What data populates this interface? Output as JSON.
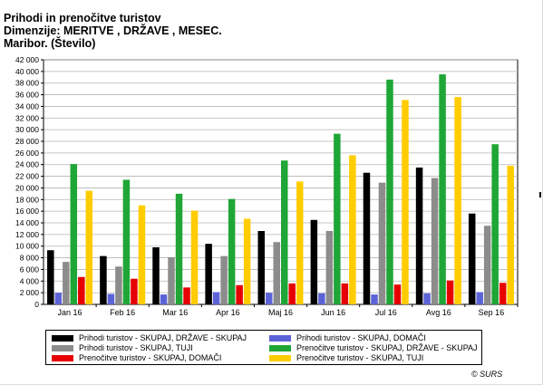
{
  "title": {
    "line1": "Prihodi in prenočitve turistov",
    "line2": "Dimenzije: MERITVE , DRŽAVE , MESEC.",
    "line3": "Maribor. (Število)"
  },
  "copyright": "© SURS",
  "chart_data": {
    "type": "bar",
    "categories": [
      "Jan 16",
      "Feb 16",
      "Mar 16",
      "Apr 16",
      "Maj 16",
      "Jun 16",
      "Jul 16",
      "Avg 16",
      "Sep 16"
    ],
    "ylim": [
      0,
      42000
    ],
    "y_ticks": [
      "0",
      "2 000",
      "4 000",
      "6 000",
      "8 000",
      "10 000",
      "12 000",
      "14 000",
      "16 000",
      "18 000",
      "20 000",
      "22 000",
      "24 000",
      "26 000",
      "28 000",
      "30 000",
      "32 000",
      "34 000",
      "36 000",
      "38 000",
      "40 000",
      "42 000"
    ],
    "y_tick_values": [
      0,
      2000,
      4000,
      6000,
      8000,
      10000,
      12000,
      14000,
      16000,
      18000,
      20000,
      22000,
      24000,
      26000,
      28000,
      30000,
      32000,
      34000,
      36000,
      38000,
      40000,
      42000
    ],
    "grid": true,
    "legend_position": "bottom",
    "series": [
      {
        "name": "Prihodi turistov - SKUPAJ, DRŽAVE - SKUPAJ",
        "color": "#000000",
        "values": [
          9300,
          8300,
          9800,
          10400,
          12600,
          14500,
          22600,
          23500,
          15600
        ]
      },
      {
        "name": "Prihodi turistov - SKUPAJ, DOMAČI",
        "color": "#5b63d6",
        "values": [
          2000,
          1800,
          1700,
          2100,
          2000,
          1900,
          1700,
          1900,
          2100
        ]
      },
      {
        "name": "Prihodi turistov - SKUPAJ, TUJI",
        "color": "#8c8c8c",
        "values": [
          7300,
          6500,
          8100,
          8300,
          10700,
          12600,
          20900,
          21700,
          13500
        ]
      },
      {
        "name": "Prenočitve turistov - SKUPAJ, DRŽAVE - SKUPAJ",
        "color": "#1fa636",
        "values": [
          24100,
          21400,
          19000,
          18100,
          24700,
          29300,
          38600,
          39500,
          27500
        ]
      },
      {
        "name": "Prenočitve turistov - SKUPAJ, DOMAČI",
        "color": "#e60000",
        "values": [
          4700,
          4400,
          2900,
          3300,
          3600,
          3600,
          3400,
          4100,
          3700
        ]
      },
      {
        "name": "Prenočitve turistov - SKUPAJ, TUJI",
        "color": "#ffcc00",
        "values": [
          19500,
          17000,
          16100,
          14700,
          21100,
          25600,
          35100,
          35600,
          23800
        ]
      }
    ]
  },
  "legend": {
    "items": [
      {
        "label": "Prihodi turistov - SKUPAJ, DRŽAVE - SKUPAJ",
        "color": "#000000"
      },
      {
        "label": "Prihodi turistov - SKUPAJ, DOMAČI",
        "color": "#5b63d6"
      },
      {
        "label": "Prihodi turistov - SKUPAJ, TUJI",
        "color": "#8c8c8c"
      },
      {
        "label": "Prenočitve turistov - SKUPAJ, DRŽAVE - SKUPAJ",
        "color": "#1fa636"
      },
      {
        "label": "Prenočitve turistov - SKUPAJ, DOMAČI",
        "color": "#e60000"
      },
      {
        "label": "Prenočitve turistov - SKUPAJ, TUJI",
        "color": "#ffcc00"
      }
    ]
  }
}
